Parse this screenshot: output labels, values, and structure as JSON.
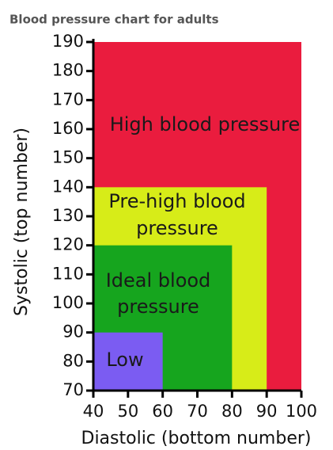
{
  "chart_data": {
    "type": "region",
    "title": "Blood pressure chart for adults",
    "x_label": "Diastolic (bottom number)",
    "y_label": "Systolic (top number)",
    "xlim": [
      40,
      100
    ],
    "ylim": [
      70,
      190
    ],
    "xticks": [
      40,
      50,
      60,
      70,
      80,
      90,
      100
    ],
    "yticks": [
      70,
      80,
      90,
      100,
      110,
      120,
      130,
      140,
      150,
      160,
      170,
      180,
      190
    ],
    "regions": [
      {
        "name": [
          "High blood pressure"
        ],
        "color": "#ea1c3e",
        "x": [
          40,
          100
        ],
        "y": [
          70,
          190
        ]
      },
      {
        "name": [
          "Pre-high blood",
          "pressure"
        ],
        "color": "#d7ec18",
        "x": [
          40,
          90
        ],
        "y": [
          70,
          140
        ]
      },
      {
        "name": [
          "Ideal blood",
          "pressure"
        ],
        "color": "#16a51e",
        "x": [
          40,
          80
        ],
        "y": [
          70,
          120
        ]
      },
      {
        "name": [
          "Low"
        ],
        "color": "#7b5cf2",
        "x": [
          40,
          60
        ],
        "y": [
          70,
          90
        ]
      }
    ]
  }
}
